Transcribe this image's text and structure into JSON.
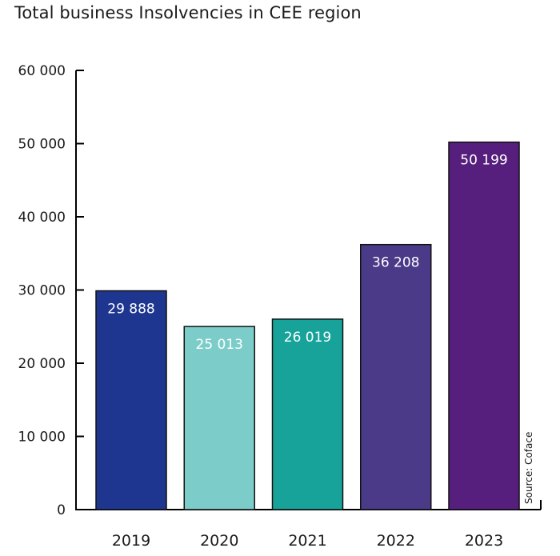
{
  "chart_data": {
    "type": "bar",
    "title": "Total business Insolvencies in CEE region",
    "categories": [
      "2019",
      "2020",
      "2021",
      "2022",
      "2023"
    ],
    "values": [
      29888,
      25013,
      26019,
      36208,
      50199
    ],
    "data_labels": [
      "29 888",
      "25 013",
      "26 019",
      "36 208",
      "50 199"
    ],
    "colors": [
      "#1f3690",
      "#7ccdca",
      "#17a399",
      "#4a3a87",
      "#561f7d"
    ],
    "label_colors": [
      "#ffffff",
      "#ffffff",
      "#ffffff",
      "#ffffff",
      "#ffffff"
    ],
    "yticks": [
      0,
      10000,
      20000,
      30000,
      40000,
      50000,
      60000
    ],
    "ytick_labels": [
      "0",
      "10 000",
      "20 000",
      "30 000",
      "40 000",
      "50 000",
      "60 000"
    ],
    "ylim": [
      0,
      60000
    ],
    "xlabel": "",
    "ylabel": "",
    "grid": false,
    "source": "Source: Coface"
  }
}
